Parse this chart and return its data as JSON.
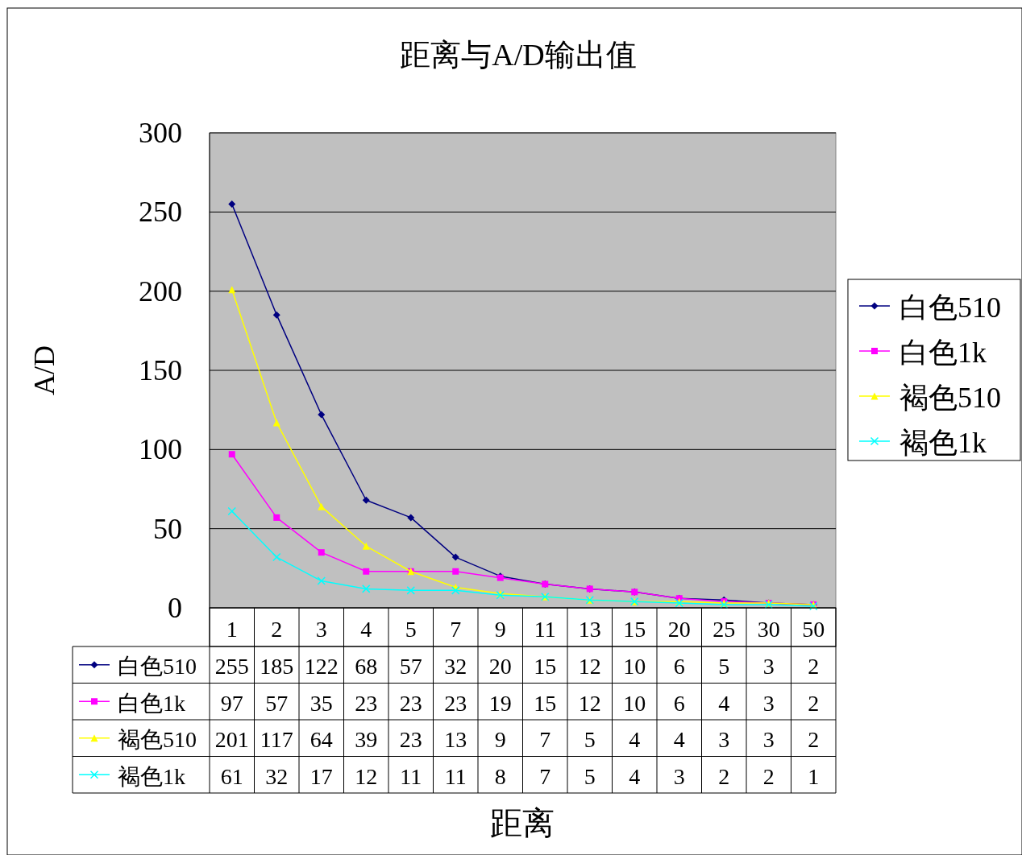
{
  "chart_data": {
    "type": "line",
    "title": "距离与A/D输出值",
    "annotations": [
      "距离"
    ],
    "ylabel": "A/D",
    "categories": [
      "1",
      "2",
      "3",
      "4",
      "5",
      "7",
      "9",
      "11",
      "13",
      "15",
      "20",
      "25",
      "30",
      "50"
    ],
    "series": [
      {
        "name": "白色510",
        "color": "#000080",
        "marker": "diamond",
        "values": [
          255,
          185,
          122,
          68,
          57,
          32,
          20,
          15,
          12,
          10,
          6,
          5,
          3,
          2
        ]
      },
      {
        "name": "白色1k",
        "color": "#ff00ff",
        "marker": "square",
        "values": [
          97,
          57,
          35,
          23,
          23,
          23,
          19,
          15,
          12,
          10,
          6,
          4,
          3,
          2
        ]
      },
      {
        "name": "褐色510",
        "color": "#ffff00",
        "marker": "triangle",
        "values": [
          201,
          117,
          64,
          39,
          23,
          13,
          9,
          7,
          5,
          4,
          4,
          3,
          3,
          2
        ]
      },
      {
        "name": "褐色1k",
        "color": "#00ffff",
        "marker": "cross",
        "values": [
          61,
          32,
          17,
          12,
          11,
          11,
          8,
          7,
          5,
          4,
          3,
          2,
          2,
          1
        ]
      }
    ],
    "ylim": [
      0,
      300
    ],
    "yticks": [
      0,
      50,
      100,
      150,
      200,
      250,
      300
    ],
    "grid": "y",
    "legend": "right",
    "line_style": "solid",
    "data_labels": true
  }
}
